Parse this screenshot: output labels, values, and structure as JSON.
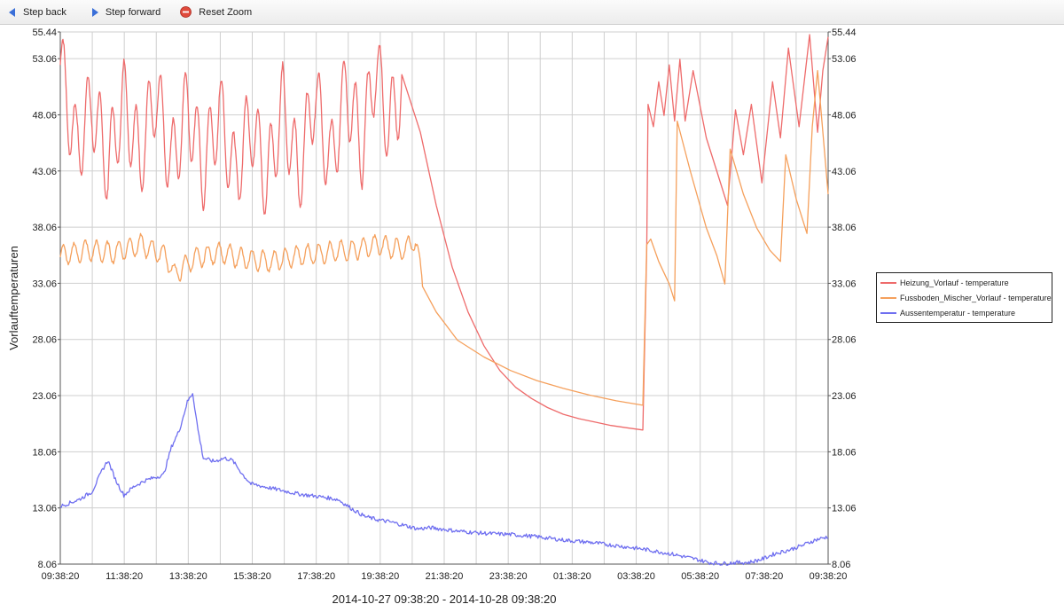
{
  "toolbar": {
    "step_back_label": "Step back",
    "step_forward_label": "Step forward",
    "reset_zoom_label": "Reset Zoom"
  },
  "chart_data": {
    "type": "line",
    "title": "",
    "xlabel": "2014-10-27 09:38:20 - 2014-10-28 09:38:20",
    "ylabel": "Vorlauftemperaturen",
    "ylim": [
      8.06,
      55.44
    ],
    "xlim": [
      "2014-10-27 09:38:20",
      "2014-10-28 09:38:20"
    ],
    "y_ticks": [
      "8.06",
      "13.06",
      "18.06",
      "23.06",
      "28.06",
      "33.06",
      "38.06",
      "43.06",
      "48.06",
      "53.06",
      "55.44"
    ],
    "x_ticks": [
      "09:38:20",
      "11:38:20",
      "13:38:20",
      "15:38:20",
      "17:38:20",
      "19:38:20",
      "21:38:20",
      "23:38:20",
      "01:38:20",
      "03:38:20",
      "05:38:20",
      "07:38:20",
      "09:38:20"
    ],
    "grid": true,
    "legend_position": "right",
    "series": [
      {
        "name": "Heizung_Vorlauf - temperature",
        "color": "#ee6b6b",
        "points": [
          [
            0.0,
            52.5
          ],
          [
            0.6,
            45.0
          ],
          [
            1.2,
            49.0
          ],
          [
            1.8,
            43.5
          ],
          [
            2.4,
            49.5
          ],
          [
            3.0,
            44.0
          ],
          [
            3.6,
            50.0
          ],
          [
            4.2,
            43.5
          ],
          [
            4.8,
            49.0
          ],
          [
            5.4,
            43.0
          ],
          [
            6.0,
            48.5
          ],
          [
            6.6,
            42.5
          ],
          [
            7.2,
            47.5
          ],
          [
            7.8,
            42.0
          ],
          [
            8.4,
            49.0
          ],
          [
            9.0,
            42.5
          ],
          [
            9.6,
            50.0
          ],
          [
            10.2,
            43.5
          ],
          [
            10.8,
            50.5
          ],
          [
            11.4,
            45.0
          ],
          [
            11.9,
            52.5
          ],
          [
            12.4,
            47.0
          ],
          [
            12.9,
            50.5
          ],
          [
            13.2,
            49.5
          ],
          [
            13.6,
            46.5
          ]
        ],
        "oscillation_hours": [
          0.0,
          12.9
        ],
        "points_after": [
          [
            13.6,
            46.5
          ],
          [
            14.2,
            40.0
          ],
          [
            14.8,
            34.5
          ],
          [
            15.4,
            30.5
          ],
          [
            16.0,
            27.5
          ],
          [
            16.6,
            25.3
          ],
          [
            17.2,
            23.8
          ],
          [
            17.8,
            22.8
          ],
          [
            18.4,
            22.0
          ],
          [
            19.0,
            21.4
          ],
          [
            19.6,
            21.0
          ],
          [
            20.2,
            20.7
          ],
          [
            20.8,
            20.4
          ],
          [
            21.4,
            20.2
          ],
          [
            22.0,
            20.0
          ],
          [
            22.15,
            36.0
          ],
          [
            22.2,
            49.0
          ],
          [
            22.4,
            47.0
          ],
          [
            22.6,
            51.0
          ],
          [
            22.8,
            48.0
          ],
          [
            23.0,
            52.5
          ],
          [
            23.2,
            47.5
          ],
          [
            23.4,
            53.0
          ],
          [
            23.6,
            47.5
          ],
          [
            23.9,
            52.0
          ],
          [
            24.4,
            46.0
          ],
          [
            24.8,
            43.0
          ],
          [
            25.2,
            40.0
          ],
          [
            25.5,
            48.5
          ],
          [
            25.8,
            44.5
          ],
          [
            26.1,
            49.0
          ],
          [
            26.5,
            42.0
          ],
          [
            26.9,
            51.0
          ],
          [
            27.2,
            46.0
          ],
          [
            27.5,
            54.0
          ],
          [
            27.9,
            47.0
          ],
          [
            28.3,
            55.2
          ],
          [
            28.6,
            46.5
          ],
          [
            28.8,
            52.0
          ],
          [
            29.0,
            55.0
          ]
        ]
      },
      {
        "name": "Fussboden_Mischer_Vorlauf - temperature",
        "color": "#f5a05c",
        "points": [
          [
            0.0,
            35.5
          ],
          [
            1.0,
            36.0
          ],
          [
            2.0,
            35.8
          ],
          [
            3.0,
            36.5
          ],
          [
            4.0,
            35.5
          ],
          [
            4.3,
            33.8
          ],
          [
            5.0,
            35.2
          ],
          [
            6.0,
            35.8
          ],
          [
            7.0,
            35.2
          ],
          [
            8.0,
            35.0
          ],
          [
            9.0,
            35.5
          ],
          [
            10.0,
            35.8
          ],
          [
            11.0,
            36.0
          ],
          [
            12.0,
            36.5
          ],
          [
            13.0,
            36.0
          ],
          [
            13.4,
            37.0
          ],
          [
            13.7,
            33.0
          ],
          [
            14.2,
            30.5
          ],
          [
            15.0,
            28.0
          ],
          [
            16.0,
            26.5
          ],
          [
            17.0,
            25.3
          ],
          [
            18.0,
            24.4
          ],
          [
            19.0,
            23.7
          ],
          [
            20.0,
            23.1
          ],
          [
            21.0,
            22.6
          ],
          [
            22.0,
            22.2
          ],
          [
            22.15,
            36.5
          ],
          [
            22.3,
            37.0
          ],
          [
            22.6,
            35.0
          ],
          [
            23.0,
            33.0
          ],
          [
            23.2,
            31.5
          ],
          [
            23.3,
            47.5
          ],
          [
            23.8,
            43.0
          ],
          [
            24.4,
            38.0
          ],
          [
            24.8,
            35.5
          ],
          [
            25.1,
            33.0
          ],
          [
            25.3,
            45.0
          ],
          [
            25.8,
            41.0
          ],
          [
            26.3,
            38.0
          ],
          [
            26.8,
            36.0
          ],
          [
            27.2,
            35.0
          ],
          [
            27.4,
            44.5
          ],
          [
            27.8,
            40.5
          ],
          [
            28.2,
            37.5
          ],
          [
            28.4,
            47.0
          ],
          [
            28.6,
            52.0
          ],
          [
            29.0,
            41.0
          ]
        ],
        "oscillation_hours": [
          0.0,
          13.7
        ]
      },
      {
        "name": "Aussentemperatur - temperature",
        "color": "#6f6ff0",
        "points": [
          [
            0.0,
            13.2
          ],
          [
            0.7,
            13.8
          ],
          [
            1.2,
            14.5
          ],
          [
            1.6,
            16.5
          ],
          [
            1.8,
            17.3
          ],
          [
            2.1,
            15.5
          ],
          [
            2.4,
            14.2
          ],
          [
            2.8,
            15.0
          ],
          [
            3.2,
            15.5
          ],
          [
            3.6,
            15.8
          ],
          [
            3.9,
            16.0
          ],
          [
            4.2,
            18.5
          ],
          [
            4.5,
            20.0
          ],
          [
            4.8,
            22.5
          ],
          [
            5.0,
            23.3
          ],
          [
            5.2,
            20.0
          ],
          [
            5.4,
            17.5
          ],
          [
            5.8,
            17.2
          ],
          [
            6.2,
            17.5
          ],
          [
            6.5,
            17.3
          ],
          [
            6.9,
            16.0
          ],
          [
            7.2,
            15.2
          ],
          [
            8.0,
            14.8
          ],
          [
            9.0,
            14.3
          ],
          [
            10.0,
            14.0
          ],
          [
            10.5,
            13.8
          ],
          [
            11.0,
            13.0
          ],
          [
            11.5,
            12.3
          ],
          [
            12.0,
            12.0
          ],
          [
            12.5,
            11.8
          ],
          [
            13.0,
            11.5
          ],
          [
            13.5,
            11.2
          ],
          [
            14.0,
            11.3
          ],
          [
            15.0,
            11.0
          ],
          [
            16.0,
            10.8
          ],
          [
            17.0,
            10.7
          ],
          [
            18.0,
            10.5
          ],
          [
            19.0,
            10.2
          ],
          [
            20.0,
            10.0
          ],
          [
            21.0,
            9.7
          ],
          [
            22.0,
            9.4
          ],
          [
            23.0,
            9.0
          ],
          [
            24.0,
            8.5
          ],
          [
            24.5,
            8.2
          ],
          [
            25.0,
            8.1
          ],
          [
            25.5,
            8.2
          ],
          [
            26.0,
            8.2
          ],
          [
            26.5,
            8.5
          ],
          [
            27.0,
            9.0
          ],
          [
            27.5,
            9.3
          ],
          [
            28.0,
            9.7
          ],
          [
            28.5,
            10.2
          ],
          [
            29.0,
            10.5
          ]
        ]
      }
    ]
  }
}
